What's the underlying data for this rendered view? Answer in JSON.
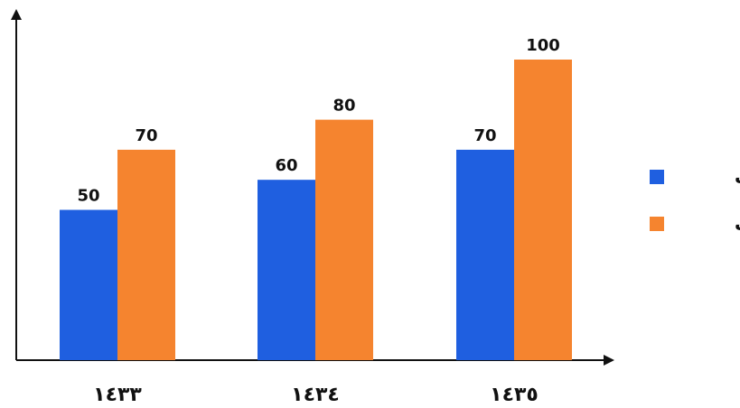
{
  "chart_data": {
    "type": "bar",
    "categories": [
      "١٤٣٣",
      "١٤٣٤",
      "١٤٣٥"
    ],
    "series": [
      {
        "name": "إيرادات",
        "values": [
          50,
          60,
          70
        ],
        "color": "#1f5fe0"
      },
      {
        "name": "نفقات",
        "values": [
          70,
          80,
          100
        ],
        "color": "#f5842f"
      }
    ],
    "ylim": [
      0,
      125
    ],
    "grid": false,
    "legend_position": "right",
    "axis_color": "#111111"
  }
}
